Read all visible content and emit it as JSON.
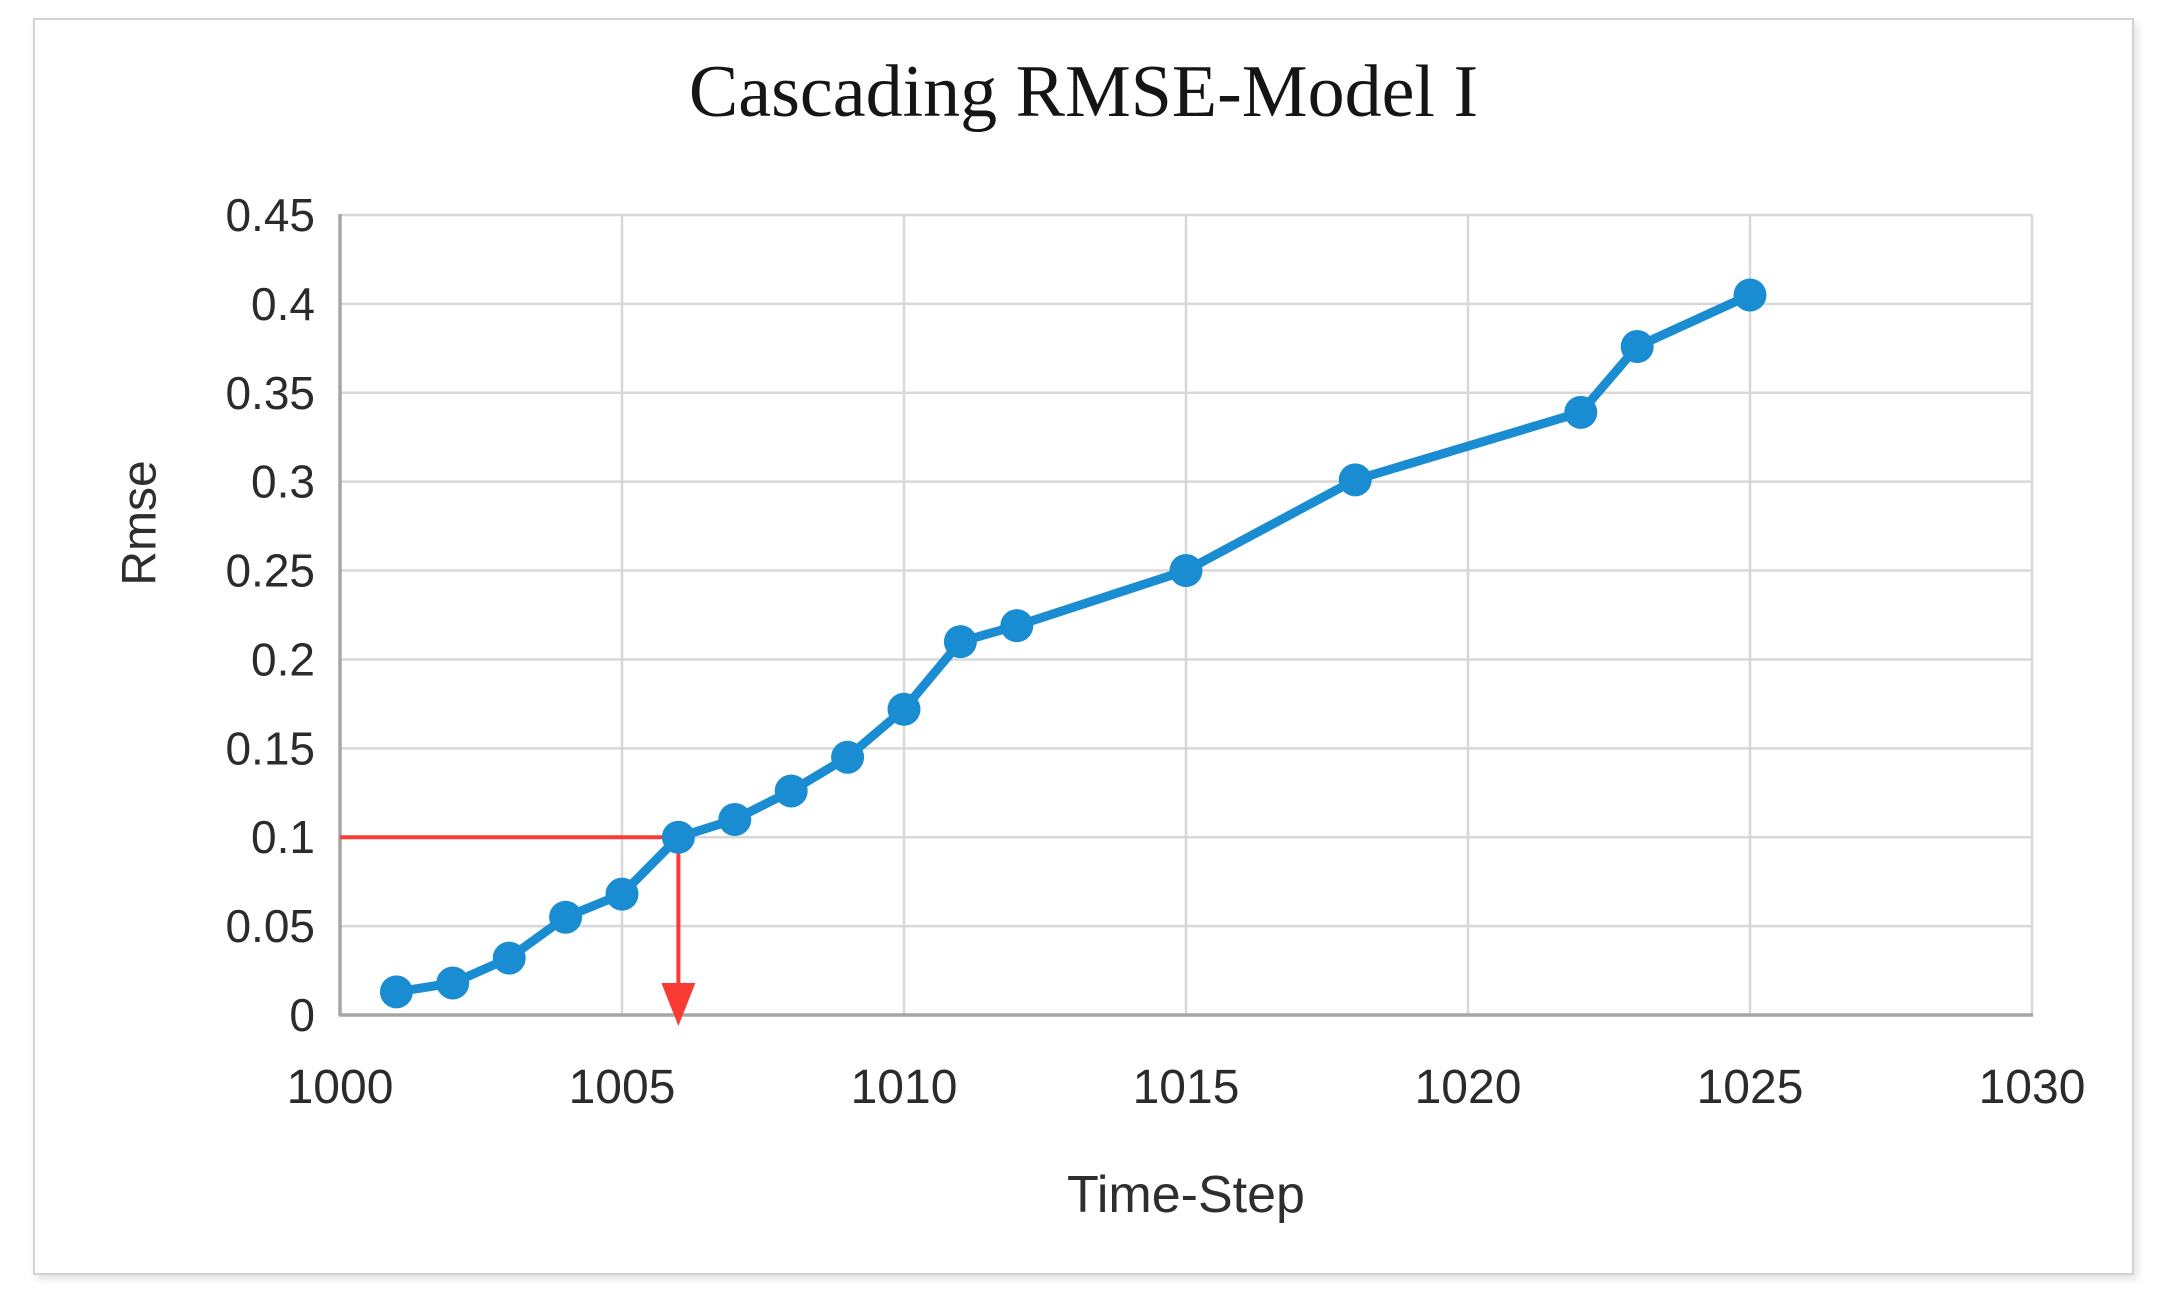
{
  "chart_data": {
    "type": "line",
    "title": "Cascading RMSE-Model I",
    "xlabel": "Time-Step",
    "ylabel": "Rmse",
    "xlim": [
      1000,
      1030
    ],
    "ylim": [
      0,
      0.45
    ],
    "grid": true,
    "legend": "none",
    "x_ticks": [
      {
        "value": 1000,
        "label": "1000"
      },
      {
        "value": 1005,
        "label": "1005"
      },
      {
        "value": 1010,
        "label": "1010"
      },
      {
        "value": 1015,
        "label": "1015"
      },
      {
        "value": 1020,
        "label": "1020"
      },
      {
        "value": 1025,
        "label": "1025"
      },
      {
        "value": 1030,
        "label": "1030"
      }
    ],
    "y_ticks": [
      {
        "value": 0,
        "label": "0"
      },
      {
        "value": 0.05,
        "label": "0.05"
      },
      {
        "value": 0.1,
        "label": "0.1"
      },
      {
        "value": 0.15,
        "label": "0.15"
      },
      {
        "value": 0.2,
        "label": "0.2"
      },
      {
        "value": 0.25,
        "label": "0.25"
      },
      {
        "value": 0.3,
        "label": "0.3"
      },
      {
        "value": 0.35,
        "label": "0.35"
      },
      {
        "value": 0.4,
        "label": "0.4"
      },
      {
        "value": 0.45,
        "label": "0.45"
      }
    ],
    "series": [
      {
        "name": "RMSE",
        "color": "#1a8cd2",
        "marker": "circle",
        "points": [
          {
            "x": 1001,
            "y": 0.013
          },
          {
            "x": 1002,
            "y": 0.018
          },
          {
            "x": 1003,
            "y": 0.032
          },
          {
            "x": 1004,
            "y": 0.055
          },
          {
            "x": 1005,
            "y": 0.068
          },
          {
            "x": 1006,
            "y": 0.1
          },
          {
            "x": 1007,
            "y": 0.11
          },
          {
            "x": 1008,
            "y": 0.126
          },
          {
            "x": 1009,
            "y": 0.145
          },
          {
            "x": 1010,
            "y": 0.172
          },
          {
            "x": 1011,
            "y": 0.21
          },
          {
            "x": 1012,
            "y": 0.219
          },
          {
            "x": 1015,
            "y": 0.25
          },
          {
            "x": 1018,
            "y": 0.301
          },
          {
            "x": 1022,
            "y": 0.339
          },
          {
            "x": 1023,
            "y": 0.376
          },
          {
            "x": 1025,
            "y": 0.405
          }
        ]
      }
    ],
    "annotation": {
      "type": "reference-lines-with-arrow",
      "x": 1006,
      "y": 0.1,
      "color": "#f93b33"
    }
  },
  "colors": {
    "series_blue": "#1a8cd2",
    "annotation_red": "#f93b33",
    "gridline": "#d8d8d8",
    "axis_line": "#a6a6a6",
    "tick_text": "#2b2b2b"
  }
}
